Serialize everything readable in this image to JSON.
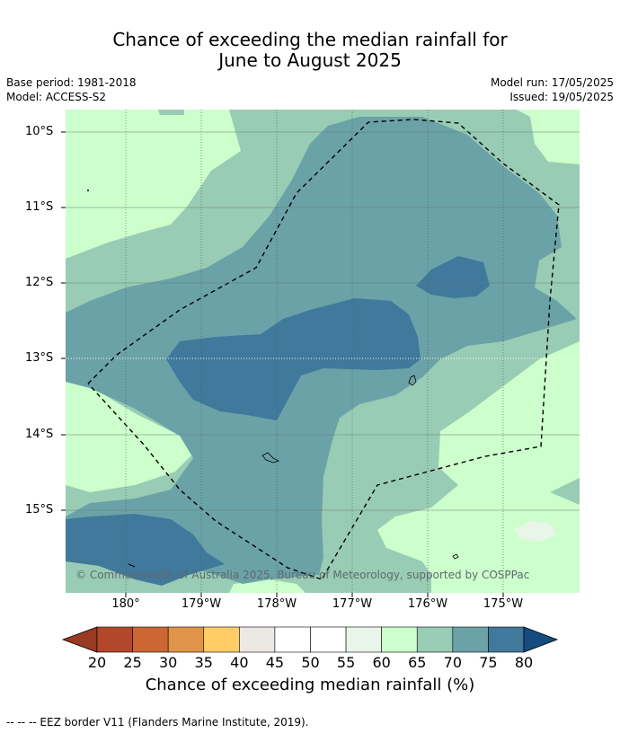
{
  "title_line1": "Chance of exceeding the median rainfall for",
  "title_line2": "June to August 2025",
  "base_period": "Base period: 1981-2018",
  "model": "Model: ACCESS-S2",
  "model_run": "Model run: 17/05/2025",
  "issued": "Issued: 19/05/2025",
  "copyright": "© Commonwealth of Australia 2025, Bureau of Meteorology, supported by COSPPac",
  "lat_labels": [
    "10°S",
    "11°S",
    "12°S",
    "13°S",
    "14°S",
    "15°S"
  ],
  "lon_labels": [
    "180°",
    "179°W",
    "178°W",
    "177°W",
    "176°W",
    "175°W"
  ],
  "colorbar": {
    "ticks": [
      "20",
      "25",
      "30",
      "35",
      "40",
      "45",
      "50",
      "55",
      "60",
      "65",
      "70",
      "75",
      "80"
    ],
    "label": "Chance of exceeding median rainfall (%)",
    "colors": {
      "below20": "#993a22",
      "20-25": "#b3472a",
      "25-30": "#cc6633",
      "30-35": "#e09448",
      "35-40": "#ffcc66",
      "40-45": "#ece8e4",
      "45-50": "#ffffff",
      "50-55": "#ffffff",
      "55-60": "#eaf5ea",
      "60-65": "#ccffcc",
      "65-70": "#99ccb4",
      "70-75": "#6aa2a7",
      "75-80": "#40799c",
      "above80": "#154c80"
    }
  },
  "legend_footer": "--  --  -- EEZ border V11 (Flanders Marine Institute, 2019)."
}
